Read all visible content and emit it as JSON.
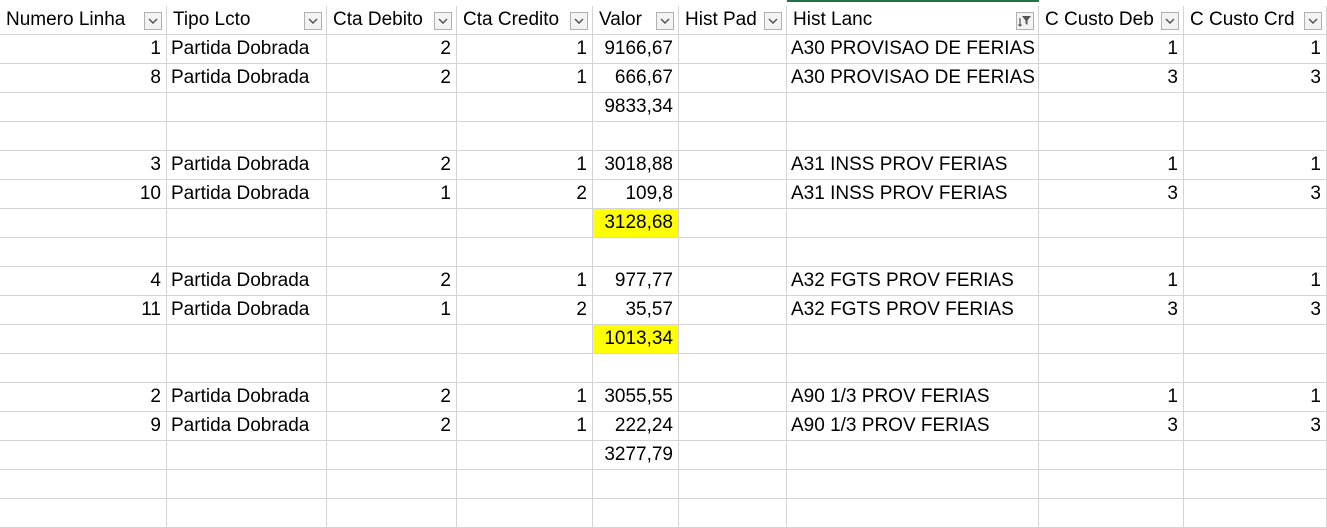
{
  "headers": [
    {
      "label": "Numero Linha"
    },
    {
      "label": "Tipo Lcto"
    },
    {
      "label": "Cta Debito"
    },
    {
      "label": "Cta Credito"
    },
    {
      "label": "Valor"
    },
    {
      "label": "Hist Pad"
    },
    {
      "label": "Hist Lanc",
      "filtered": true
    },
    {
      "label": "C Custo Deb"
    },
    {
      "label": "C Custo Crd"
    }
  ],
  "rows": [
    [
      "1",
      "Partida Dobrada",
      "2",
      "1",
      "9166,67",
      "",
      "A30 PROVISAO DE FERIAS",
      "1",
      "1"
    ],
    [
      "8",
      "Partida Dobrada",
      "2",
      "1",
      "666,67",
      "",
      "A30 PROVISAO DE FERIAS",
      "3",
      "3"
    ],
    [
      "",
      "",
      "",
      "",
      "9833,34",
      "",
      "",
      "",
      ""
    ],
    [
      "",
      "",
      "",
      "",
      "",
      "",
      "",
      "",
      ""
    ],
    [
      "3",
      "Partida Dobrada",
      "2",
      "1",
      "3018,88",
      "",
      "A31 INSS PROV FERIAS",
      "1",
      "1"
    ],
    [
      "10",
      "Partida Dobrada",
      "1",
      "2",
      "109,8",
      "",
      "A31 INSS PROV FERIAS",
      "3",
      "3"
    ],
    [
      "",
      "",
      "",
      "",
      "3128,68",
      "",
      "",
      "",
      ""
    ],
    [
      "",
      "",
      "",
      "",
      "",
      "",
      "",
      "",
      ""
    ],
    [
      "4",
      "Partida Dobrada",
      "2",
      "1",
      "977,77",
      "",
      "A32 FGTS PROV FERIAS",
      "1",
      "1"
    ],
    [
      "11",
      "Partida Dobrada",
      "1",
      "2",
      "35,57",
      "",
      "A32 FGTS PROV FERIAS",
      "3",
      "3"
    ],
    [
      "",
      "",
      "",
      "",
      "1013,34",
      "",
      "",
      "",
      ""
    ],
    [
      "",
      "",
      "",
      "",
      "",
      "",
      "",
      "",
      ""
    ],
    [
      "2",
      "Partida Dobrada",
      "2",
      "1",
      "3055,55",
      "",
      "A90 1/3 PROV FERIAS",
      "1",
      "1"
    ],
    [
      "9",
      "Partida Dobrada",
      "2",
      "1",
      "222,24",
      "",
      "A90 1/3 PROV FERIAS",
      "3",
      "3"
    ],
    [
      "",
      "",
      "",
      "",
      "3277,79",
      "",
      "",
      "",
      ""
    ],
    [
      "",
      "",
      "",
      "",
      "",
      "",
      "",
      "",
      ""
    ],
    [
      "",
      "",
      "",
      "",
      "",
      "",
      "",
      "",
      ""
    ]
  ],
  "highlighted_cells": [
    {
      "row": 6,
      "col": 4
    },
    {
      "row": 10,
      "col": 4
    }
  ],
  "colors": {
    "highlight": "#ffff00",
    "gridline": "#d4d4d4",
    "active_column_marker": "#217346"
  },
  "icons": {
    "filter_dropdown": "chevron-down-icon",
    "filter_applied": "filter-active-icon"
  }
}
